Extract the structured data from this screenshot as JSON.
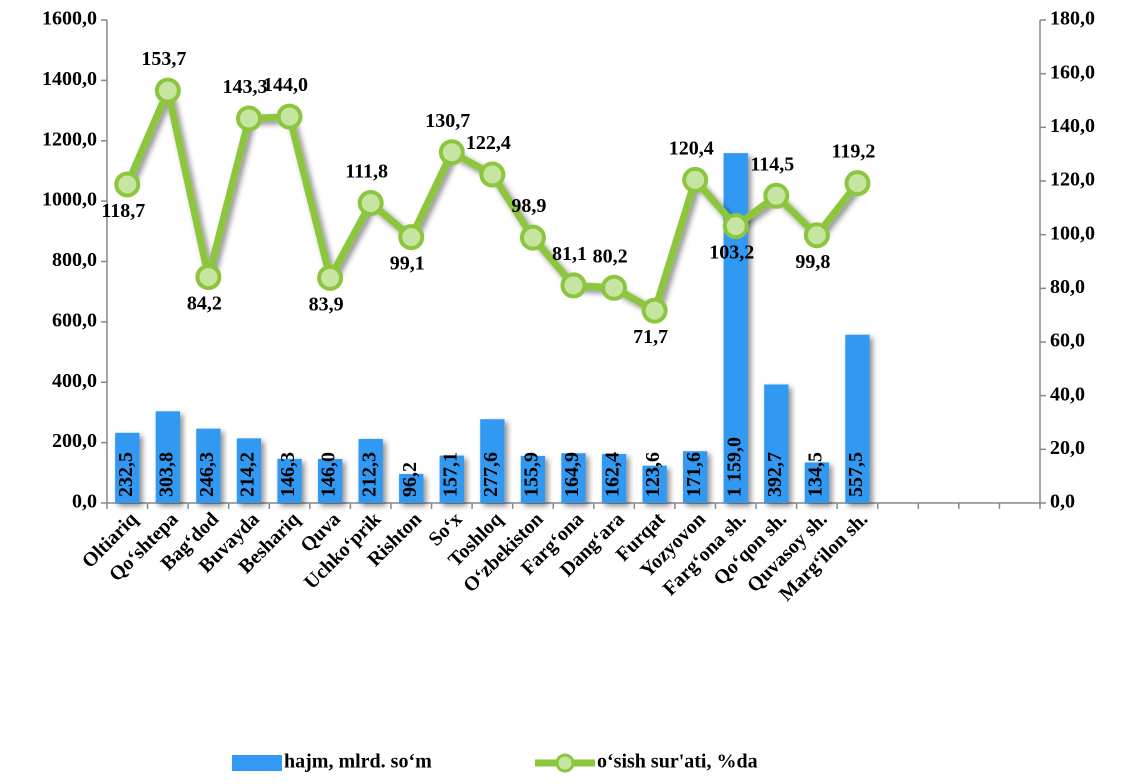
{
  "chart_data": {
    "type": "bar_line",
    "categories": [
      "Oltiariq",
      "Qo‘shtepa",
      "Bag‘dod",
      "Buvayda",
      "Beshariq",
      "Quva",
      "Uchko‘prik",
      "Rishton",
      "So‘x",
      "Toshloq",
      "O‘zbekiston",
      "Farg‘ona",
      "Dang‘ara",
      "Furqat",
      "Yozyovon",
      "Farg‘ona sh.",
      "Qo‘qon sh.",
      "Quvasoy sh.",
      "Marg‘ilon sh.",
      null,
      null,
      null,
      null
    ],
    "series": [
      {
        "name": "hajm, mlrd. so‘m",
        "type": "bar",
        "color": "#3399f3",
        "values": [
          232.5,
          303.8,
          246.3,
          214.2,
          146.3,
          146.0,
          212.3,
          96.2,
          157.1,
          277.6,
          155.9,
          164.9,
          162.4,
          123.6,
          171.6,
          1159.0,
          392.7,
          134.5,
          557.5,
          null,
          null,
          null,
          null
        ],
        "value_labels": [
          "232,5",
          "303,8",
          "246,3",
          "214,2",
          "146,3",
          "146,0",
          "212,3",
          "96,2",
          "157,1",
          "277,6",
          "155,9",
          "164,9",
          "162,4",
          "123,6",
          "171,6",
          "1 159,0",
          "392,7",
          "134,5",
          "557,5",
          null,
          null,
          null,
          null
        ]
      },
      {
        "name": "o‘sish sur'ati, %da",
        "type": "line",
        "axis": "y2",
        "color": "#8cc63e",
        "marker_color": "#c5e5a0",
        "values": [
          118.7,
          153.7,
          84.2,
          143.3,
          144.0,
          83.9,
          111.8,
          99.1,
          130.7,
          122.4,
          98.9,
          81.1,
          80.2,
          71.7,
          120.4,
          103.2,
          114.5,
          99.8,
          119.2,
          null,
          null,
          null,
          null
        ],
        "value_labels": [
          "118,7",
          "153,7",
          "84,2",
          "143,3",
          "144,0",
          "83,9",
          "111,8",
          "99,1",
          "130,7",
          "122,4",
          "98,9",
          "81,1",
          "80,2",
          "71,7",
          "120,4",
          "103,2",
          "114,5",
          "99,8",
          "119,2",
          null,
          null,
          null,
          null
        ]
      }
    ],
    "ylim": [
      0,
      1600
    ],
    "yticks": [
      {
        "value": 0,
        "label": "0,0"
      },
      {
        "value": 200,
        "label": "200,0"
      },
      {
        "value": 400,
        "label": "400,0"
      },
      {
        "value": 600,
        "label": "600,0"
      },
      {
        "value": 800,
        "label": "800,0"
      },
      {
        "value": 1000,
        "label": "1000,0"
      },
      {
        "value": 1200,
        "label": "1200,0"
      },
      {
        "value": 1400,
        "label": "1400,0"
      },
      {
        "value": 1600,
        "label": "1600,0"
      }
    ],
    "y2lim": [
      0,
      180
    ],
    "y2ticks": [
      {
        "value": 0,
        "label": "0,0"
      },
      {
        "value": 20,
        "label": "20,0"
      },
      {
        "value": 40,
        "label": "40,0"
      },
      {
        "value": 60,
        "label": "60,0"
      },
      {
        "value": 80,
        "label": "80,0"
      },
      {
        "value": 100,
        "label": "100,0"
      },
      {
        "value": 120,
        "label": "120,0"
      },
      {
        "value": 140,
        "label": "140,0"
      },
      {
        "value": 160,
        "label": "160,0"
      },
      {
        "value": 180,
        "label": "180,0"
      }
    ],
    "grid": false,
    "legend": "bottom"
  }
}
